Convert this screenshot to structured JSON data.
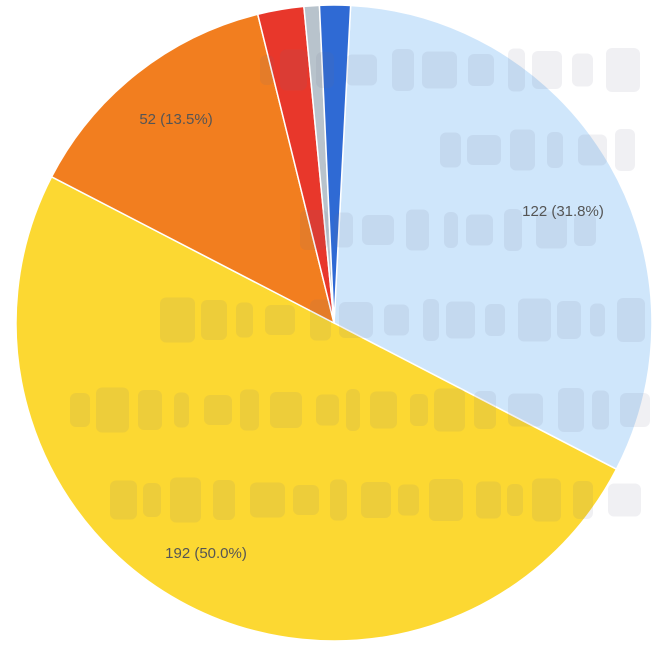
{
  "chart_data": {
    "type": "pie",
    "slices": [
      {
        "value": 122,
        "label": "122 (31.8%)",
        "color": "#cfe6fb"
      },
      {
        "value": 192,
        "label": "192 (50.0%)",
        "color": "#fcd832"
      },
      {
        "value": 52,
        "label": "52 (13.5%)",
        "color": "#f27e1f"
      },
      {
        "value": 9,
        "label": "",
        "color": "#e8372b"
      },
      {
        "value": 3,
        "label": "",
        "color": "#b8c3cc"
      },
      {
        "value": 6,
        "label": "",
        "color": "#2f6ad4"
      }
    ],
    "total": 384,
    "start_angle_deg": 3,
    "direction": "clockwise",
    "legend": "none"
  }
}
